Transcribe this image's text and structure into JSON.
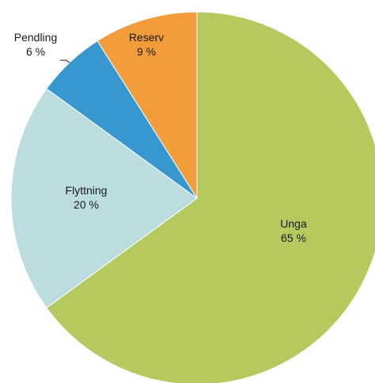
{
  "chart_data": {
    "type": "pie",
    "start_angle_deg": 0,
    "direction": "clockwise",
    "slices": [
      {
        "label": "Unga",
        "value": 65,
        "value_label": "65 %",
        "color": "#b6c95e"
      },
      {
        "label": "Flyttning",
        "value": 20,
        "value_label": "20 %",
        "color": "#bcdde0"
      },
      {
        "label": "Pendling",
        "value": 6,
        "value_label": "6 %",
        "color": "#3797cf"
      },
      {
        "label": "Reserv",
        "value": 9,
        "value_label": "9 %",
        "color": "#f39c3b"
      }
    ]
  }
}
